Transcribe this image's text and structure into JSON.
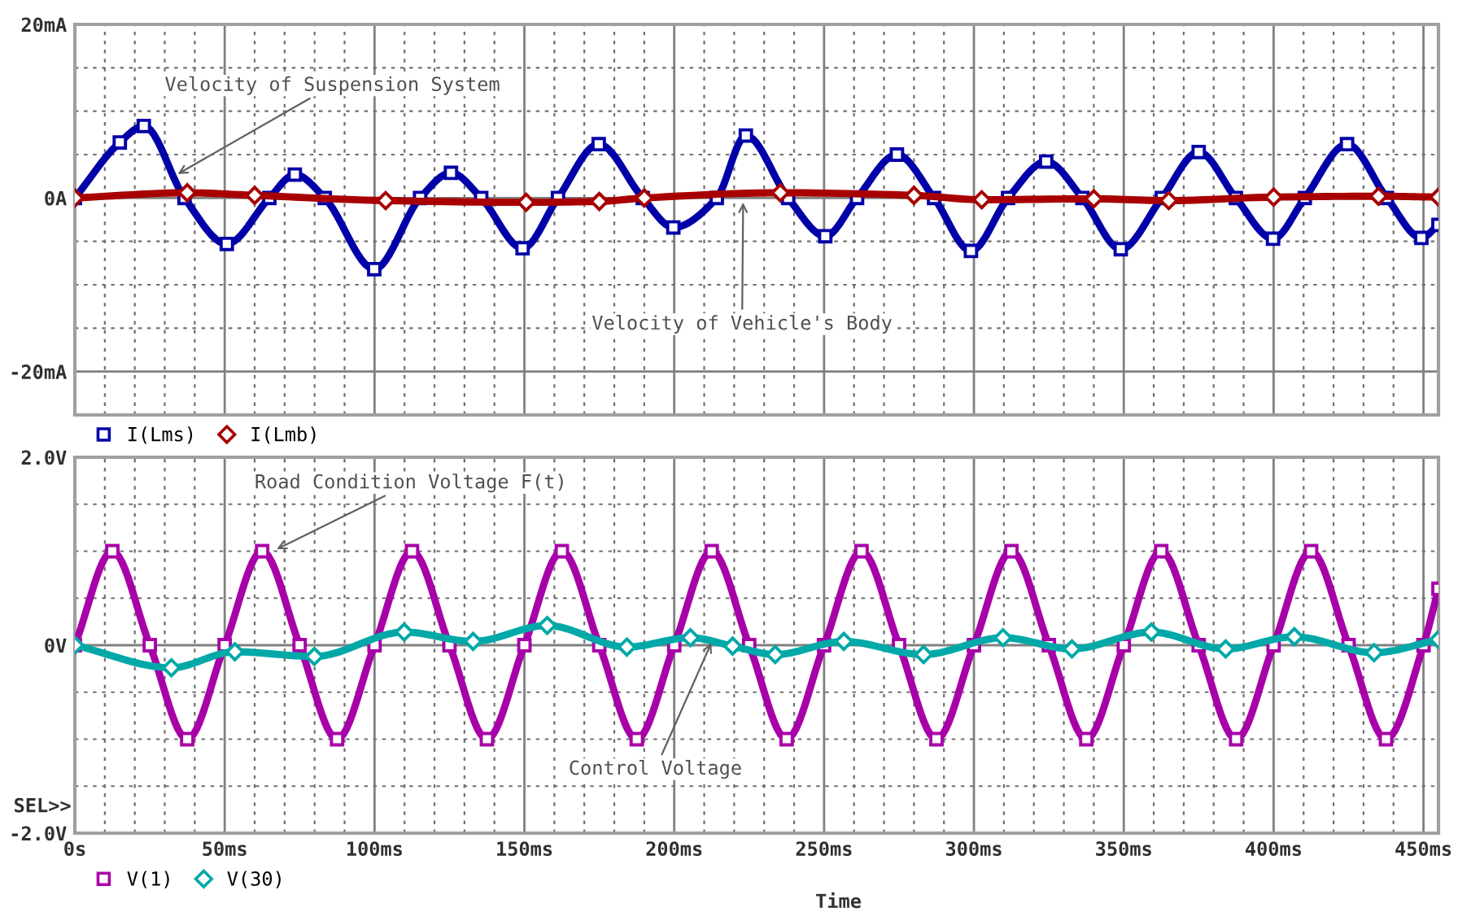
{
  "chart_data": [
    {
      "type": "line",
      "ylim": [
        -25,
        20
      ],
      "xlim": [
        0,
        455
      ],
      "tick_labels": "y",
      "grid": true,
      "legend": "bottom left",
      "yticks": [
        {
          "value": 20,
          "label": "20mA"
        },
        {
          "value": 15,
          "label": null
        },
        {
          "value": 10,
          "label": null
        },
        {
          "value": 5,
          "label": null
        },
        {
          "value": 0,
          "label": "0A"
        },
        {
          "value": -5,
          "label": null
        },
        {
          "value": -10,
          "label": null
        },
        {
          "value": -15,
          "label": null
        },
        {
          "value": -20,
          "label": "-20mA"
        },
        {
          "value": -25,
          "label": null
        }
      ],
      "xticks": [
        {
          "value": 0,
          "label": null
        },
        {
          "value": 10,
          "label": null
        },
        {
          "value": 20,
          "label": null
        },
        {
          "value": 30,
          "label": null
        },
        {
          "value": 40,
          "label": null
        },
        {
          "value": 50,
          "label": null
        },
        {
          "value": 60,
          "label": null
        },
        {
          "value": 70,
          "label": null
        },
        {
          "value": 80,
          "label": null
        },
        {
          "value": 90,
          "label": null
        },
        {
          "value": 100,
          "label": null
        },
        {
          "value": 110,
          "label": null
        },
        {
          "value": 120,
          "label": null
        },
        {
          "value": 130,
          "label": null
        },
        {
          "value": 140,
          "label": null
        },
        {
          "value": 150,
          "label": null
        },
        {
          "value": 160,
          "label": null
        },
        {
          "value": 170,
          "label": null
        },
        {
          "value": 180,
          "label": null
        },
        {
          "value": 190,
          "label": null
        },
        {
          "value": 200,
          "label": null
        },
        {
          "value": 210,
          "label": null
        },
        {
          "value": 220,
          "label": null
        },
        {
          "value": 230,
          "label": null
        },
        {
          "value": 240,
          "label": null
        },
        {
          "value": 250,
          "label": null
        },
        {
          "value": 260,
          "label": null
        },
        {
          "value": 270,
          "label": null
        },
        {
          "value": 280,
          "label": null
        },
        {
          "value": 290,
          "label": null
        },
        {
          "value": 300,
          "label": null
        },
        {
          "value": 310,
          "label": null
        },
        {
          "value": 320,
          "label": null
        },
        {
          "value": 330,
          "label": null
        },
        {
          "value": 340,
          "label": null
        },
        {
          "value": 350,
          "label": null
        },
        {
          "value": 360,
          "label": null
        },
        {
          "value": 370,
          "label": null
        },
        {
          "value": 380,
          "label": null
        },
        {
          "value": 390,
          "label": null
        },
        {
          "value": 400,
          "label": null
        },
        {
          "value": 410,
          "label": null
        },
        {
          "value": 420,
          "label": null
        },
        {
          "value": 430,
          "label": null
        },
        {
          "value": 440,
          "label": null
        },
        {
          "value": 450,
          "label": null
        }
      ],
      "annotations": [
        {
          "text": "Velocity of Suspension System",
          "x": 33,
          "y": 2.5
        },
        {
          "text": "Velocity of Vehicle's Body",
          "x": 223,
          "y": 0
        }
      ],
      "series": [
        {
          "name": "I(Lms)",
          "color": "#0000a8",
          "marker": "square",
          "x": [
            0,
            15,
            23,
            36.6,
            50.7,
            64.9,
            73.4,
            83.4,
            99.9,
            115.2,
            125.5,
            135.6,
            149.4,
            161.2,
            174.8,
            189.5,
            199.7,
            214.2,
            223.9,
            238,
            250.4,
            261,
            274.3,
            286.7,
            299,
            311.4,
            324.1,
            336.2,
            349,
            362.7,
            375,
            387.4,
            399.8,
            410.4,
            424.5,
            437.8,
            449.3,
            455
          ],
          "values": [
            0,
            6.4,
            8.3,
            0,
            -5.3,
            0,
            2.7,
            0,
            -8.2,
            0,
            2.9,
            0,
            -5.8,
            0,
            6.2,
            0,
            -3.4,
            0,
            7.2,
            0,
            -4.4,
            0,
            5.0,
            0,
            -6.1,
            0,
            4.2,
            0,
            -5.9,
            0,
            5.3,
            0,
            -4.7,
            0,
            6.2,
            0,
            -4.6,
            -3.1
          ]
        },
        {
          "name": "I(Lmb)",
          "color": "#a80000",
          "marker": "diamond",
          "x": [
            0,
            37.5,
            60,
            103.7,
            150.6,
            175,
            190,
            235.4,
            280,
            302.6,
            340,
            365,
            400,
            435,
            455
          ],
          "values": [
            0,
            0.6,
            0.3,
            -0.3,
            -0.5,
            -0.4,
            0,
            0.6,
            0.3,
            -0.2,
            -0.1,
            -0.3,
            0.1,
            0.2,
            0.1
          ]
        }
      ]
    },
    {
      "type": "line",
      "ylim": [
        -2,
        2
      ],
      "xlim": [
        0,
        455
      ],
      "grid": true,
      "legend": "bottom left",
      "xlabel": "Time",
      "yticks": [
        {
          "value": 2,
          "label": "2.0V"
        },
        {
          "value": 1.5,
          "label": null
        },
        {
          "value": 1,
          "label": null
        },
        {
          "value": 0.5,
          "label": null
        },
        {
          "value": 0,
          "label": "0V"
        },
        {
          "value": -0.5,
          "label": null
        },
        {
          "value": -1,
          "label": null
        },
        {
          "value": -1.5,
          "label": null
        },
        {
          "value": -2,
          "label": "-2.0V"
        }
      ],
      "xticks": [
        {
          "value": 0,
          "label": "0s"
        },
        {
          "value": 10,
          "label": null
        },
        {
          "value": 20,
          "label": null
        },
        {
          "value": 30,
          "label": null
        },
        {
          "value": 40,
          "label": null
        },
        {
          "value": 50,
          "label": "50ms"
        },
        {
          "value": 60,
          "label": null
        },
        {
          "value": 70,
          "label": null
        },
        {
          "value": 80,
          "label": null
        },
        {
          "value": 90,
          "label": null
        },
        {
          "value": 100,
          "label": "100ms"
        },
        {
          "value": 110,
          "label": null
        },
        {
          "value": 120,
          "label": null
        },
        {
          "value": 130,
          "label": null
        },
        {
          "value": 140,
          "label": null
        },
        {
          "value": 150,
          "label": "150ms"
        },
        {
          "value": 160,
          "label": null
        },
        {
          "value": 170,
          "label": null
        },
        {
          "value": 180,
          "label": null
        },
        {
          "value": 190,
          "label": null
        },
        {
          "value": 200,
          "label": "200ms"
        },
        {
          "value": 210,
          "label": null
        },
        {
          "value": 220,
          "label": null
        },
        {
          "value": 230,
          "label": null
        },
        {
          "value": 240,
          "label": null
        },
        {
          "value": 250,
          "label": "250ms"
        },
        {
          "value": 260,
          "label": null
        },
        {
          "value": 270,
          "label": null
        },
        {
          "value": 280,
          "label": null
        },
        {
          "value": 290,
          "label": null
        },
        {
          "value": 300,
          "label": "300ms"
        },
        {
          "value": 310,
          "label": null
        },
        {
          "value": 320,
          "label": null
        },
        {
          "value": 330,
          "label": null
        },
        {
          "value": 340,
          "label": null
        },
        {
          "value": 350,
          "label": "350ms"
        },
        {
          "value": 360,
          "label": null
        },
        {
          "value": 370,
          "label": null
        },
        {
          "value": 380,
          "label": null
        },
        {
          "value": 390,
          "label": null
        },
        {
          "value": 400,
          "label": "400ms"
        },
        {
          "value": 410,
          "label": null
        },
        {
          "value": 420,
          "label": null
        },
        {
          "value": 430,
          "label": null
        },
        {
          "value": 440,
          "label": null
        },
        {
          "value": 450,
          "label": "450ms"
        }
      ],
      "annotations": [
        {
          "text": "Road Condition Voltage F(t)",
          "x": 66,
          "y": 1.0
        },
        {
          "text": "Control Voltage",
          "x": 213,
          "y": 0.07
        },
        "SEL>>"
      ],
      "series": [
        {
          "name": "V(1)",
          "color": "#a800a8",
          "marker": "square",
          "x": [
            0,
            12.5,
            25,
            37.5,
            50,
            62.5,
            75,
            87.5,
            100,
            112.5,
            125,
            137.5,
            150,
            162.5,
            175,
            187.5,
            200,
            212.5,
            225,
            237.5,
            250,
            262.5,
            275,
            287.5,
            300,
            312.5,
            325,
            337.5,
            350,
            362.5,
            375,
            387.5,
            400,
            412.5,
            425,
            437.5,
            450,
            455
          ],
          "values": [
            0,
            1,
            0,
            -1,
            0,
            1,
            0,
            -1,
            0,
            1,
            0,
            -1,
            0,
            1,
            0,
            -1,
            0,
            1,
            0,
            -1,
            0,
            1,
            0,
            -1,
            0,
            1,
            0,
            -1,
            0,
            1,
            0,
            -1,
            0,
            1,
            0,
            -1,
            0,
            0.6
          ]
        },
        {
          "name": "V(30)",
          "color": "#00a8a8",
          "marker": "diamond",
          "x": [
            0,
            32.2,
            53.4,
            79.9,
            109.9,
            132.9,
            157.6,
            184.2,
            205.4,
            219.5,
            233.7,
            256.6,
            283.2,
            309.7,
            332.7,
            359.2,
            384,
            406.9,
            433.5,
            455
          ],
          "values": [
            0,
            -0.24,
            -0.07,
            -0.12,
            0.14,
            0.04,
            0.21,
            -0.02,
            0.08,
            -0.01,
            -0.1,
            0.04,
            -0.1,
            0.08,
            -0.04,
            0.14,
            -0.04,
            0.09,
            -0.08,
            0.06
          ]
        }
      ]
    }
  ]
}
